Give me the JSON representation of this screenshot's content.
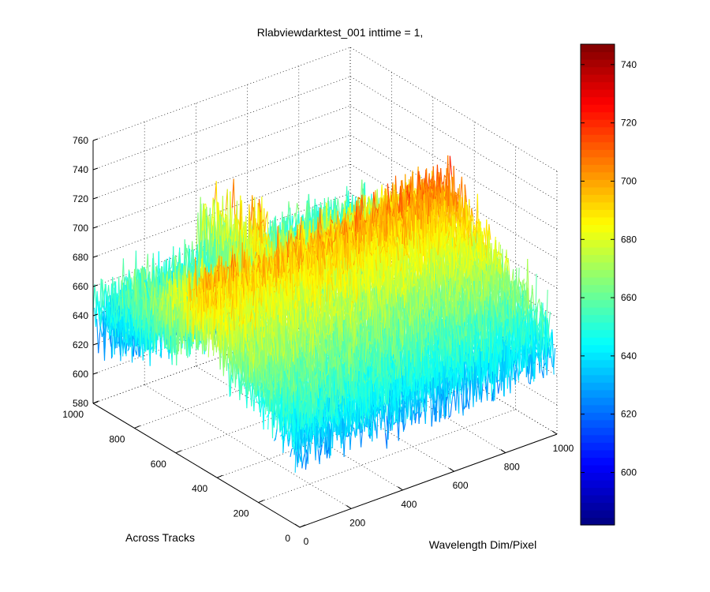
{
  "chart_data": {
    "type": "surface",
    "title": "Rlabviewdarktest_001 inttime = 1,",
    "xlabel": "Wavelength Dim/Pixel",
    "ylabel": "Across Tracks",
    "zlabel": "",
    "xlim": [
      0,
      1000
    ],
    "ylim": [
      0,
      1000
    ],
    "zlim": [
      580,
      760
    ],
    "x_ticks": [
      "0",
      "200",
      "400",
      "600",
      "800",
      "1000"
    ],
    "y_ticks": [
      "0",
      "200",
      "400",
      "600",
      "800",
      "1000"
    ],
    "z_ticks": [
      "580",
      "600",
      "620",
      "640",
      "660",
      "680",
      "700",
      "720",
      "740",
      "760"
    ],
    "grid": true,
    "colormap": "jet",
    "colorbar": {
      "range": [
        582,
        747
      ],
      "ticks": [
        "600",
        "620",
        "640",
        "660",
        "680",
        "700",
        "720",
        "740"
      ]
    },
    "profile_across_tracks_at_wavelength_0": {
      "y": [
        0,
        200,
        400,
        500,
        600,
        800,
        1000
      ],
      "z": [
        640,
        658,
        675,
        690,
        675,
        650,
        640
      ]
    },
    "profile_along_wavelength_at_across_track_500": {
      "x": [
        0,
        200,
        400,
        600,
        800,
        1000
      ],
      "z": [
        690,
        688,
        690,
        692,
        698,
        705
      ]
    },
    "noise_amplitude": 25
  }
}
